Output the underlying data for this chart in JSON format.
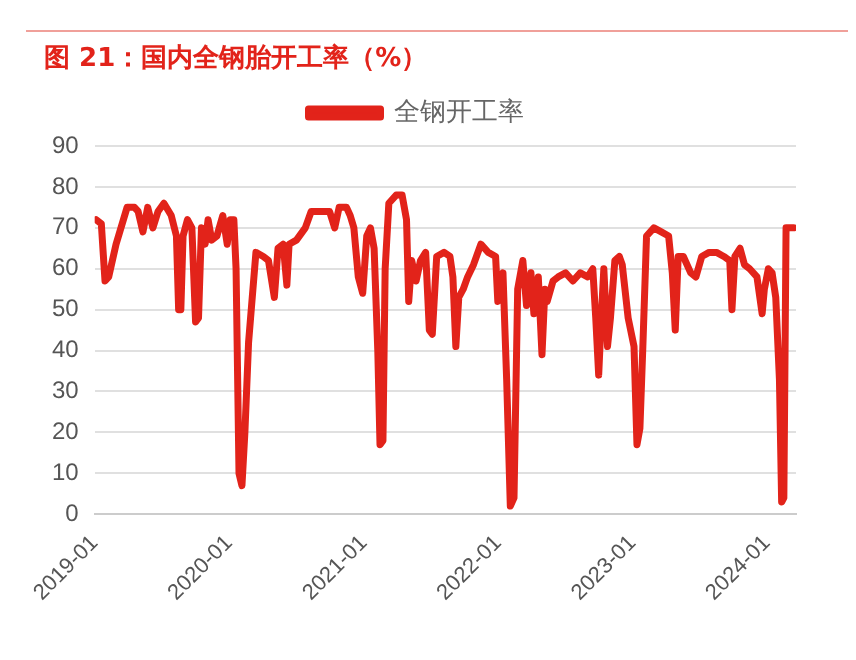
{
  "chart_data": {
    "type": "line",
    "title": "图 21：国内全钢胎开工率（%）",
    "x": [
      "2019-01-05",
      "2019-01-19",
      "2019-01-29",
      "2019-02-08",
      "2019-02-28",
      "2019-03-30",
      "2019-04-19",
      "2019-04-29",
      "2019-05-12",
      "2019-05-25",
      "2019-06-08",
      "2019-06-22",
      "2019-07-08",
      "2019-07-28",
      "2019-08-11",
      "2019-08-17",
      "2019-08-23",
      "2019-08-29",
      "2019-09-10",
      "2019-09-22",
      "2019-10-02",
      "2019-10-10",
      "2019-10-18",
      "2019-10-28",
      "2019-11-05",
      "2019-11-15",
      "2019-11-29",
      "2019-12-15",
      "2019-12-27",
      "2020-01-04",
      "2020-01-14",
      "2020-01-20",
      "2020-01-28",
      "2020-02-05",
      "2020-02-13",
      "2020-02-23",
      "2020-03-14",
      "2020-04-03",
      "2020-04-17",
      "2020-05-03",
      "2020-05-13",
      "2020-05-27",
      "2020-06-06",
      "2020-06-12",
      "2020-07-02",
      "2020-07-26",
      "2020-08-11",
      "2020-09-10",
      "2020-09-30",
      "2020-10-14",
      "2020-10-26",
      "2020-11-15",
      "2020-11-25",
      "2020-12-05",
      "2020-12-17",
      "2020-12-29",
      "2021-01-09",
      "2021-01-19",
      "2021-01-29",
      "2021-02-08",
      "2021-02-14",
      "2021-02-22",
      "2021-02-28",
      "2021-03-10",
      "2021-03-30",
      "2021-04-15",
      "2021-04-27",
      "2021-05-03",
      "2021-05-11",
      "2021-05-23",
      "2021-06-04",
      "2021-06-18",
      "2021-06-28",
      "2021-07-06",
      "2021-07-18",
      "2021-08-07",
      "2021-08-23",
      "2021-08-31",
      "2021-09-08",
      "2021-09-16",
      "2021-09-28",
      "2021-10-10",
      "2021-10-26",
      "2021-11-15",
      "2021-12-05",
      "2021-12-25",
      "2021-12-31",
      "2022-01-14",
      "2022-01-24",
      "2022-02-03",
      "2022-02-13",
      "2022-02-23",
      "2022-03-09",
      "2022-03-19",
      "2022-03-31",
      "2022-04-08",
      "2022-04-20",
      "2022-04-30",
      "2022-05-08",
      "2022-05-14",
      "2022-05-30",
      "2022-06-13",
      "2022-07-03",
      "2022-07-23",
      "2022-08-12",
      "2022-09-01",
      "2022-09-15",
      "2022-09-23",
      "2022-10-01",
      "2022-10-07",
      "2022-10-15",
      "2022-10-25",
      "2022-11-02",
      "2022-11-14",
      "2022-11-26",
      "2022-12-04",
      "2022-12-20",
      "2023-01-05",
      "2023-01-13",
      "2023-01-21",
      "2023-01-29",
      "2023-02-08",
      "2023-02-28",
      "2023-03-20",
      "2023-04-09",
      "2023-04-19",
      "2023-04-27",
      "2023-05-05",
      "2023-05-19",
      "2023-06-08",
      "2023-06-22",
      "2023-07-08",
      "2023-07-28",
      "2023-08-17",
      "2023-09-06",
      "2023-09-22",
      "2023-09-28",
      "2023-10-06",
      "2023-10-20",
      "2023-11-01",
      "2023-11-15",
      "2023-12-05",
      "2023-12-19",
      "2023-12-25",
      "2024-01-05",
      "2024-01-15",
      "2024-01-25",
      "2024-02-04",
      "2024-02-10",
      "2024-02-16",
      "2024-02-22",
      "2024-03-04",
      "2024-03-14"
    ],
    "series": [
      {
        "name": "全钢开工率",
        "color": "#e2231a",
        "values": [
          72,
          71,
          57,
          58,
          66,
          75,
          75,
          74,
          69,
          75,
          70,
          74,
          76,
          73,
          68,
          50,
          50,
          68,
          72,
          70,
          47,
          48,
          70,
          66,
          72,
          67,
          68,
          73,
          66,
          72,
          72,
          60,
          10,
          7,
          20,
          42,
          64,
          63,
          62,
          53,
          65,
          66,
          56,
          66,
          67,
          70,
          74,
          74,
          74,
          70,
          75,
          75,
          73,
          70,
          58,
          54,
          68,
          70,
          65,
          40,
          17,
          18,
          60,
          76,
          78,
          78,
          72,
          52,
          62,
          57,
          62,
          64,
          45,
          44,
          63,
          64,
          63,
          58,
          41,
          53,
          55,
          58,
          61,
          66,
          64,
          63,
          52,
          59,
          33,
          2,
          4,
          55,
          62,
          51,
          59,
          49,
          58,
          39,
          55,
          52,
          57,
          58,
          59,
          57,
          59,
          58,
          60,
          48,
          34,
          46,
          60,
          41,
          48,
          62,
          63,
          61,
          48,
          41,
          17,
          21,
          41,
          68,
          70,
          69,
          68,
          59,
          45,
          63,
          63,
          59,
          58,
          63,
          64,
          64,
          63,
          62,
          50,
          63,
          65,
          61,
          60,
          58,
          49,
          55,
          60,
          59,
          53,
          33,
          3,
          4,
          70,
          70,
          70
        ]
      }
    ],
    "xlim": [
      "2019-01-01",
      "2024-03-20"
    ],
    "xticks": [
      "2019-01",
      "2020-01",
      "2021-01",
      "2022-01",
      "2023-01",
      "2024-01"
    ],
    "ylim": [
      0,
      90
    ],
    "yticks": [
      0,
      10,
      20,
      30,
      40,
      50,
      60,
      70,
      80,
      90
    ],
    "grid": "y",
    "legend": "top",
    "marker": "none",
    "line_style": "solid"
  }
}
